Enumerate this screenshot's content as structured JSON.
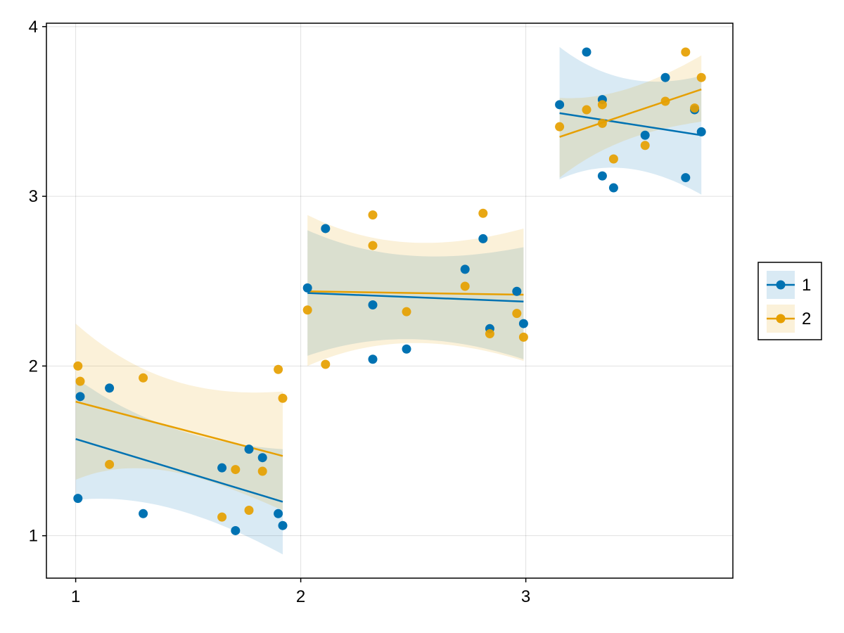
{
  "chart_data": {
    "type": "scatter",
    "title": "",
    "xlabel": "",
    "ylabel": "",
    "xlim": [
      0.87,
      3.92
    ],
    "ylim": [
      0.75,
      4.02
    ],
    "xticks": [
      1,
      2,
      3
    ],
    "yticks": [
      1,
      2,
      3,
      4
    ],
    "grid": true,
    "legend_position": "right",
    "series": [
      {
        "name": "1",
        "color": "#0072b2",
        "band_color": "#0072b2",
        "points": [
          [
            1.01,
            1.22
          ],
          [
            1.02,
            1.82
          ],
          [
            1.15,
            1.87
          ],
          [
            1.3,
            1.13
          ],
          [
            1.65,
            1.4
          ],
          [
            1.71,
            1.03
          ],
          [
            1.77,
            1.51
          ],
          [
            1.83,
            1.46
          ],
          [
            1.9,
            1.13
          ],
          [
            1.92,
            1.06
          ],
          [
            2.03,
            2.46
          ],
          [
            2.11,
            2.81
          ],
          [
            2.32,
            2.36
          ],
          [
            2.32,
            2.04
          ],
          [
            2.47,
            2.1
          ],
          [
            2.73,
            2.57
          ],
          [
            2.81,
            2.75
          ],
          [
            2.84,
            2.22
          ],
          [
            2.96,
            2.44
          ],
          [
            2.99,
            2.25
          ],
          [
            3.15,
            3.54
          ],
          [
            3.27,
            3.85
          ],
          [
            3.34,
            3.57
          ],
          [
            3.34,
            3.12
          ],
          [
            3.39,
            3.05
          ],
          [
            3.53,
            3.36
          ],
          [
            3.62,
            3.7
          ],
          [
            3.71,
            3.11
          ],
          [
            3.75,
            3.51
          ],
          [
            3.78,
            3.38
          ]
        ],
        "fits": [
          {
            "x": [
              1.0,
              1.92
            ],
            "y": [
              1.57,
              1.2
            ],
            "lower": [
              1.21,
              0.89
            ],
            "upper": [
              1.93,
              1.51
            ]
          },
          {
            "x": [
              2.03,
              2.99
            ],
            "y": [
              2.43,
              2.38
            ],
            "lower": [
              2.06,
              2.04
            ],
            "upper": [
              2.8,
              2.7
            ]
          },
          {
            "x": [
              3.15,
              3.78
            ],
            "y": [
              3.49,
              3.36
            ],
            "lower": [
              3.1,
              3.01
            ],
            "upper": [
              3.88,
              3.71
            ]
          }
        ]
      },
      {
        "name": "2",
        "color": "#e69f00",
        "band_color": "#e69f00",
        "points": [
          [
            1.01,
            2.0
          ],
          [
            1.02,
            1.91
          ],
          [
            1.15,
            1.42
          ],
          [
            1.3,
            1.93
          ],
          [
            1.65,
            1.11
          ],
          [
            1.71,
            1.39
          ],
          [
            1.77,
            1.15
          ],
          [
            1.83,
            1.38
          ],
          [
            1.9,
            1.98
          ],
          [
            1.92,
            1.81
          ],
          [
            2.03,
            2.33
          ],
          [
            2.11,
            2.01
          ],
          [
            2.32,
            2.71
          ],
          [
            2.32,
            2.89
          ],
          [
            2.47,
            2.32
          ],
          [
            2.73,
            2.47
          ],
          [
            2.81,
            2.9
          ],
          [
            2.84,
            2.19
          ],
          [
            2.96,
            2.31
          ],
          [
            2.99,
            2.17
          ],
          [
            3.15,
            3.41
          ],
          [
            3.27,
            3.51
          ],
          [
            3.34,
            3.54
          ],
          [
            3.34,
            3.43
          ],
          [
            3.39,
            3.22
          ],
          [
            3.53,
            3.3
          ],
          [
            3.62,
            3.56
          ],
          [
            3.71,
            3.85
          ],
          [
            3.75,
            3.52
          ],
          [
            3.78,
            3.7
          ]
        ],
        "fits": [
          {
            "x": [
              1.0,
              1.92
            ],
            "y": [
              1.79,
              1.47
            ],
            "lower": [
              1.33,
              1.15
            ],
            "upper": [
              2.25,
              1.85
            ]
          },
          {
            "x": [
              2.03,
              2.99
            ],
            "y": [
              2.44,
              2.42
            ],
            "lower": [
              2.0,
              2.03
            ],
            "upper": [
              2.89,
              2.81
            ]
          },
          {
            "x": [
              3.15,
              3.78
            ],
            "y": [
              3.35,
              3.63
            ],
            "lower": [
              3.11,
              3.44
            ],
            "upper": [
              3.58,
              3.83
            ]
          }
        ]
      }
    ]
  }
}
